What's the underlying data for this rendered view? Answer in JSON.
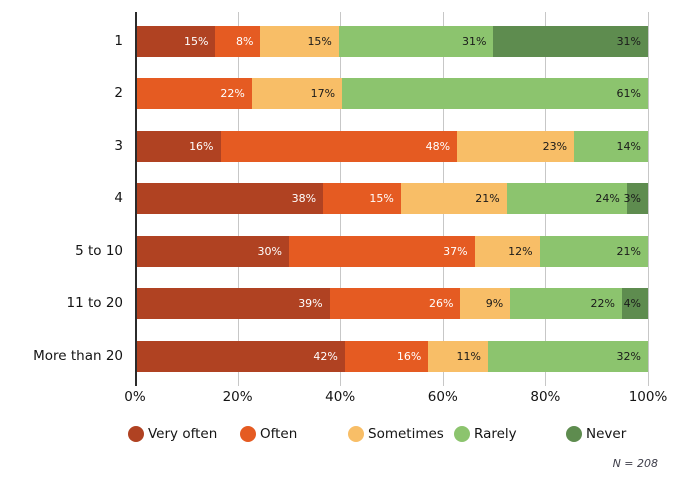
{
  "chart_data": {
    "type": "bar",
    "stacked": true,
    "orientation": "horizontal",
    "title": "",
    "categories": [
      "1",
      "2",
      "3",
      "4",
      "5 to 10",
      "11 to 20",
      "More than 20"
    ],
    "series": [
      {
        "name": "Very often",
        "color": "#b04222",
        "label_color": "#ffffff",
        "values": [
          15,
          0,
          16,
          38,
          30,
          39,
          42
        ]
      },
      {
        "name": "Often",
        "color": "#e55b22",
        "label_color": "#ffffff",
        "values": [
          8,
          22,
          48,
          15,
          37,
          26,
          16
        ]
      },
      {
        "name": "Sometimes",
        "color": "#f8be67",
        "label_color": "#1a1a1a",
        "values": [
          15,
          17,
          23,
          21,
          12,
          9,
          11
        ]
      },
      {
        "name": "Rarely",
        "color": "#8cc46e",
        "label_color": "#1a1a1a",
        "values": [
          31,
          61,
          14,
          24,
          21,
          22,
          32
        ]
      },
      {
        "name": "Never",
        "color": "#5e8c4f",
        "label_color": "#1a1a1a",
        "values": [
          31,
          0,
          0,
          3,
          0,
          4,
          0
        ]
      }
    ],
    "value_suffix": "%",
    "xlim": [
      0,
      100
    ],
    "x_tick_labels": [
      "0%",
      "20%",
      "40%",
      "60%",
      "80%",
      "100%"
    ],
    "grid": "vertical",
    "legend_position": "bottom",
    "legend": [
      "Very often",
      "Often",
      "Sometimes",
      "Rarely",
      "Never"
    ],
    "note": "N = 208"
  },
  "style": {
    "gridline_color": "#c7c7c7",
    "axis_color": "#2b2b2b",
    "text_color": "#141414",
    "note_color": "#3e3e4a"
  }
}
